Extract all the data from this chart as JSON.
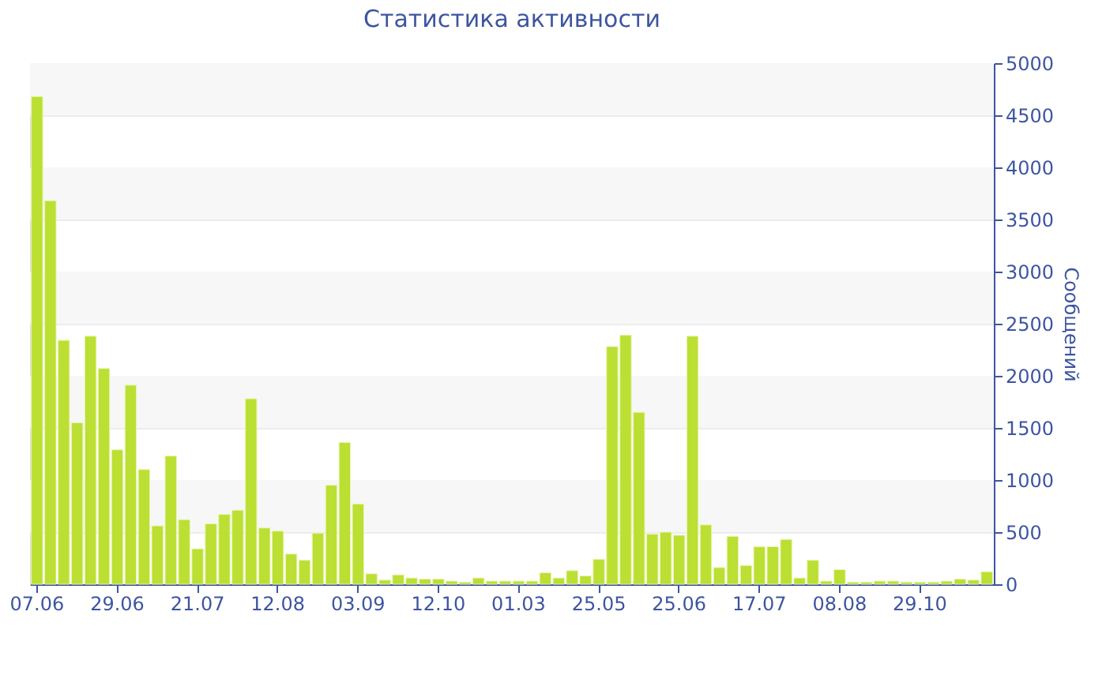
{
  "chart_data": {
    "type": "bar",
    "title": "Статистика активности",
    "ylabel": "Сообщений",
    "categories": [
      "07.06",
      null,
      null,
      null,
      null,
      null,
      "29.06",
      null,
      null,
      null,
      null,
      null,
      "21.07",
      null,
      null,
      null,
      null,
      null,
      "12.08",
      null,
      null,
      null,
      null,
      null,
      "03.09",
      null,
      null,
      null,
      null,
      null,
      "12.10",
      null,
      null,
      null,
      null,
      null,
      "01.03",
      null,
      null,
      null,
      null,
      null,
      "25.05",
      null,
      null,
      null,
      null,
      null,
      "25.06",
      null,
      null,
      null,
      null,
      null,
      "17.07",
      null,
      null,
      null,
      null,
      null,
      "08.08",
      null,
      null,
      null,
      null,
      null,
      "29.10",
      null,
      null,
      null,
      null,
      null
    ],
    "values": [
      4680,
      3680,
      2340,
      1550,
      2380,
      2070,
      1290,
      1910,
      1100,
      560,
      1230,
      620,
      340,
      580,
      670,
      710,
      1780,
      540,
      510,
      290,
      230,
      490,
      950,
      1360,
      770,
      100,
      40,
      90,
      60,
      50,
      50,
      30,
      20,
      60,
      30,
      30,
      30,
      30,
      110,
      60,
      130,
      80,
      240,
      2280,
      2390,
      1650,
      480,
      500,
      470,
      2380,
      570,
      160,
      460,
      180,
      360,
      360,
      430,
      60,
      230,
      30,
      140,
      20,
      20,
      30,
      30,
      20,
      20,
      20,
      30,
      50,
      40,
      120
    ],
    "color": "#bbdf32",
    "ylim": [
      0,
      5000
    ],
    "yticks": [
      0,
      500,
      1000,
      1500,
      2000,
      2500,
      3000,
      3500,
      4000,
      4500,
      5000
    ],
    "grid": "y"
  }
}
